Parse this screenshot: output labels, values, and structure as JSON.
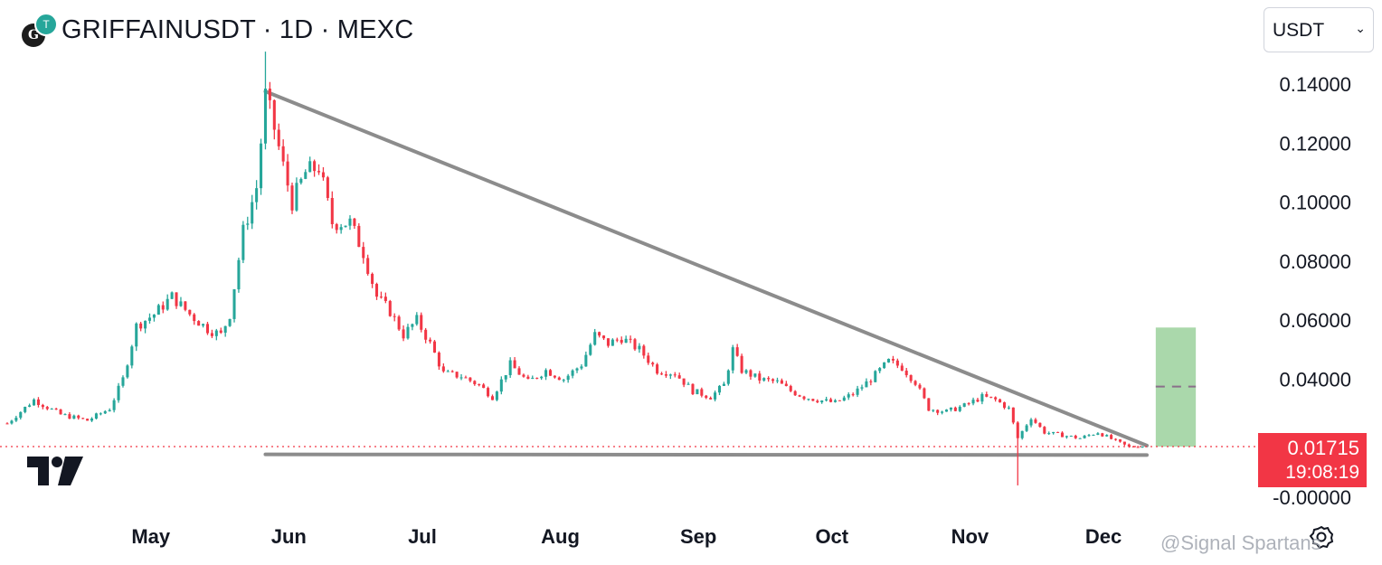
{
  "header": {
    "title": "GRIFFAINUSDT · 1D · MEXC",
    "logo_letter": "G",
    "logo_badge_glyph": "T"
  },
  "currency_select": {
    "value": "USDT",
    "caret": "⌄"
  },
  "price_tag": {
    "price": "0.01715",
    "countdown": "19:08:19",
    "color": "#f23645"
  },
  "watermark": "@Signal Spartans",
  "colors": {
    "up": "#26a69a",
    "down": "#f23645",
    "trendline": "#8c8c8c",
    "target_box": "#a5d6a7",
    "price_line": "#f23645"
  },
  "chart_data": {
    "type": "candlestick",
    "symbol": "GRIFFAINUSDT",
    "interval": "1D",
    "exchange": "MEXC",
    "y_axis": {
      "ticks": [
        "0.14000",
        "0.12000",
        "0.10000",
        "0.08000",
        "0.06000",
        "0.04000",
        "-0.00000"
      ],
      "tick_values": [
        0.14,
        0.12,
        0.1,
        0.08,
        0.06,
        0.04,
        0.0
      ],
      "range": [
        -0.005,
        0.155
      ]
    },
    "x_axis": {
      "months": [
        "May",
        "Jun",
        "Jul",
        "Aug",
        "Sep",
        "Oct",
        "Nov",
        "Dec"
      ],
      "month_starts": [
        "2024-05-01",
        "2024-06-01",
        "2024-07-01",
        "2024-08-01",
        "2024-09-01",
        "2024-10-01",
        "2024-11-01",
        "2024-12-01"
      ],
      "range": [
        "2024-04-02",
        "2024-12-26"
      ]
    },
    "anchors": [
      [
        "2024-04-02",
        0.025
      ],
      [
        "2024-04-08",
        0.033
      ],
      [
        "2024-04-14",
        0.028
      ],
      [
        "2024-04-20",
        0.026
      ],
      [
        "2024-04-25",
        0.03
      ],
      [
        "2024-04-28",
        0.04
      ],
      [
        "2024-05-01",
        0.058
      ],
      [
        "2024-05-05",
        0.062
      ],
      [
        "2024-05-09",
        0.068
      ],
      [
        "2024-05-13",
        0.062
      ],
      [
        "2024-05-17",
        0.057
      ],
      [
        "2024-05-20",
        0.055
      ],
      [
        "2024-05-22",
        0.062
      ],
      [
        "2024-05-25",
        0.09
      ],
      [
        "2024-05-28",
        0.105
      ],
      [
        "2024-05-30",
        0.136
      ],
      [
        "2024-06-01",
        0.125
      ],
      [
        "2024-06-03",
        0.112
      ],
      [
        "2024-06-05",
        0.1
      ],
      [
        "2024-06-08",
        0.11
      ],
      [
        "2024-06-11",
        0.112
      ],
      [
        "2024-06-14",
        0.093
      ],
      [
        "2024-06-18",
        0.093
      ],
      [
        "2024-06-21",
        0.083
      ],
      [
        "2024-06-24",
        0.068
      ],
      [
        "2024-06-27",
        0.063
      ],
      [
        "2024-06-30",
        0.055
      ],
      [
        "2024-07-03",
        0.06
      ],
      [
        "2024-07-06",
        0.052
      ],
      [
        "2024-07-09",
        0.042
      ],
      [
        "2024-07-13",
        0.041
      ],
      [
        "2024-07-17",
        0.038
      ],
      [
        "2024-07-20",
        0.034
      ],
      [
        "2024-07-24",
        0.045
      ],
      [
        "2024-07-28",
        0.039
      ],
      [
        "2024-08-01",
        0.043
      ],
      [
        "2024-08-05",
        0.04
      ],
      [
        "2024-08-09",
        0.045
      ],
      [
        "2024-08-12",
        0.055
      ],
      [
        "2024-08-15",
        0.052
      ],
      [
        "2024-08-18",
        0.054
      ],
      [
        "2024-08-22",
        0.05
      ],
      [
        "2024-08-26",
        0.043
      ],
      [
        "2024-08-30",
        0.042
      ],
      [
        "2024-09-03",
        0.036
      ],
      [
        "2024-09-07",
        0.034
      ],
      [
        "2024-09-10",
        0.038
      ],
      [
        "2024-09-12",
        0.05
      ],
      [
        "2024-09-14",
        0.043
      ],
      [
        "2024-09-18",
        0.04
      ],
      [
        "2024-09-22",
        0.039
      ],
      [
        "2024-09-25",
        0.036
      ],
      [
        "2024-09-28",
        0.034
      ],
      [
        "2024-10-01",
        0.033
      ],
      [
        "2024-10-05",
        0.032
      ],
      [
        "2024-10-09",
        0.035
      ],
      [
        "2024-10-13",
        0.04
      ],
      [
        "2024-10-17",
        0.046
      ],
      [
        "2024-10-20",
        0.044
      ],
      [
        "2024-10-23",
        0.039
      ],
      [
        "2024-10-26",
        0.03
      ],
      [
        "2024-10-30",
        0.029
      ],
      [
        "2024-11-03",
        0.031
      ],
      [
        "2024-11-07",
        0.034
      ],
      [
        "2024-11-10",
        0.033
      ],
      [
        "2024-11-13",
        0.03
      ],
      [
        "2024-11-15",
        0.02
      ],
      [
        "2024-11-18",
        0.027
      ],
      [
        "2024-11-21",
        0.022
      ],
      [
        "2024-11-25",
        0.021
      ],
      [
        "2024-11-29",
        0.02
      ],
      [
        "2024-12-03",
        0.022
      ],
      [
        "2024-12-07",
        0.019
      ],
      [
        "2024-12-10",
        0.017
      ],
      [
        "2024-12-13",
        0.0175
      ]
    ],
    "spikes": [
      {
        "date": "2024-05-30",
        "high": 0.151
      },
      {
        "date": "2024-11-15",
        "low": 0.004
      }
    ],
    "current_price": 0.01715,
    "annotations": {
      "descending_trendline": [
        [
          "2024-05-30",
          0.1375
        ],
        [
          "2024-12-14",
          0.0175
        ]
      ],
      "support_line": [
        [
          "2024-05-30",
          0.0145
        ],
        [
          "2024-12-14",
          0.0143
        ]
      ],
      "target_box": {
        "from": "2024-12-16",
        "to": "2024-12-25",
        "top": 0.0575,
        "bottom": 0.01715,
        "midline": 0.0375
      }
    }
  }
}
